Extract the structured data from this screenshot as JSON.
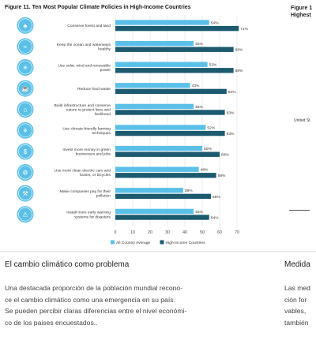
{
  "figure": {
    "title": "Figure 11. Ten Most Popular Climate Policies in High-Income Countries"
  },
  "right_panel": {
    "title_lines": [
      "Figure 1",
      "Highest"
    ],
    "label": "United St",
    "heading": "Medida",
    "body_lines": [
      "Las med",
      "ción for",
      "vables,",
      "también"
    ]
  },
  "article": {
    "heading": "El cambio climático como problema",
    "body_lines": [
      "Una destacada proporción de la población mundial recono-",
      "ce el cambio climático como una emergencia en su país.",
      "Se pueden percibir claras diferencias entre el nivel económi-",
      "co de los paises encuestados.."
    ]
  },
  "colors": {
    "all_country": "#5bc0e8",
    "high_income": "#1b5a6f",
    "icon_fill": "#5bc0e8",
    "grid": "#e3e3e3"
  },
  "chart_data": {
    "type": "bar",
    "orientation": "horizontal",
    "title": "Figure 11. Ten Most Popular Climate Policies in High-Income Countries",
    "xlim": [
      0,
      70
    ],
    "xticks": [
      0,
      10,
      20,
      30,
      40,
      50,
      60,
      70
    ],
    "grid": true,
    "legend_position": "bottom",
    "categories": [
      [
        "Conserve forest and land"
      ],
      [
        "Keep the ocean and waterways",
        "healthy"
      ],
      [
        "Use solar, wind and renewable",
        "power"
      ],
      [
        "Reduce food waste"
      ],
      [
        "Build infrastructure and conserve",
        "nature to protect lives and",
        "livelihood"
      ],
      [
        "Use climate-friendly farming",
        "techniques"
      ],
      [
        "Invest more money in green",
        "businesses and jobs"
      ],
      [
        "Use more clean electric cars and",
        "buses, or bicycles"
      ],
      [
        "Make companies pay for their",
        "pollution"
      ],
      [
        "Install more early warning",
        "systems for disasters"
      ]
    ],
    "icons": [
      "forest-icon",
      "ocean-icon",
      "solar-icon",
      "food-icon",
      "infrastructure-icon",
      "farming-icon",
      "money-icon",
      "car-icon",
      "factory-icon",
      "warning-icon"
    ],
    "series": [
      {
        "name": "All Country Average",
        "color": "#5bc0e8",
        "values": [
          54,
          45,
          53,
          43,
          45,
          52,
          50,
          48,
          39,
          45
        ]
      },
      {
        "name": "High-Income Countries",
        "color": "#1b5a6f",
        "values": [
          71,
          68,
          68,
          64,
          63,
          63,
          60,
          58,
          55,
          54
        ]
      }
    ],
    "value_suffix": "%"
  }
}
